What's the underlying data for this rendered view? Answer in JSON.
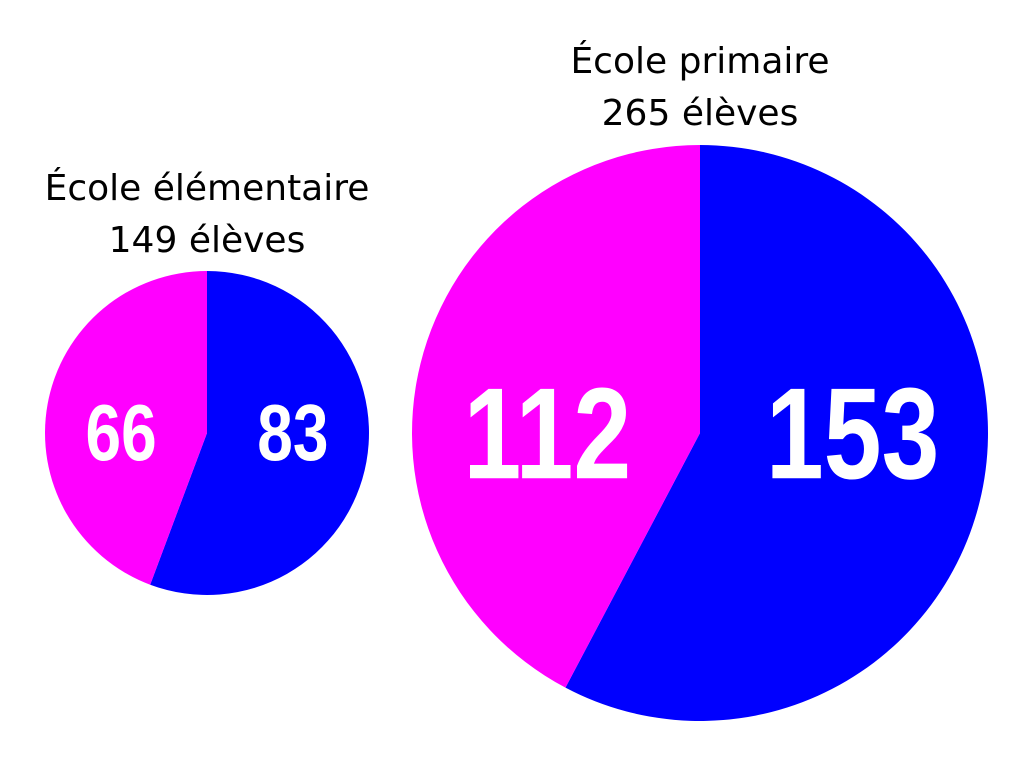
{
  "chart_data": [
    {
      "type": "pie",
      "title": "École élémentaire",
      "subtitle": "149 élèves",
      "values": [
        83,
        66
      ],
      "colors": [
        "#0000ff",
        "#ff00ff"
      ]
    },
    {
      "type": "pie",
      "title": "École primaire",
      "subtitle": "265 élèves",
      "values": [
        153,
        112
      ],
      "colors": [
        "#0000ff",
        "#ff00ff"
      ]
    }
  ]
}
